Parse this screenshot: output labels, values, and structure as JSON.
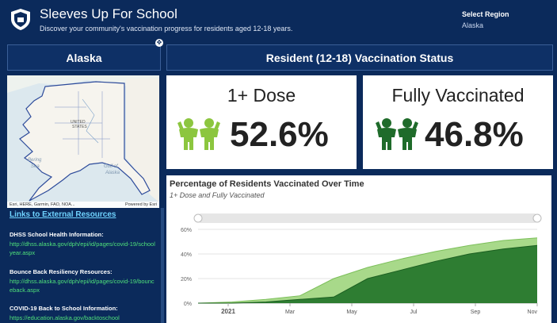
{
  "header": {
    "title": "Sleeves Up For School",
    "subtitle": "Discover your community's vaccination progress for residents aged 12-18 years.",
    "region_label": "Select Region",
    "region_value": "Alaska"
  },
  "left_panel": {
    "title": "Alaska",
    "map": {
      "labels": [
        "UNITED",
        "STATES",
        "Bering",
        "Sea",
        "Gulf of",
        "Alaska"
      ],
      "attribution": "Esri, HERE, Garmin, FAO, NOA...",
      "powered_by": "Powered by Esri"
    },
    "links": {
      "title": "Links to External Resources",
      "items": [
        {
          "heading": "DHSS School Health Information:",
          "url": "http://dhss.alaska.gov/dph/epi/id/pages/covid-19/schoolyear.aspx"
        },
        {
          "heading": "Bounce Back Resiliency Resources:",
          "url": "http://dhss.alaska.gov/dph/epi/id/pages/covid-19/bounceback.aspx"
        },
        {
          "heading": "COVID-19 Back to School Information:",
          "url": "https://education.alaska.gov/backtoschool"
        }
      ]
    }
  },
  "status": {
    "title": "Resident (12-18) Vaccination Status",
    "one_dose": {
      "label": "1+ Dose",
      "value": "52.6%",
      "color": "#8cc63f"
    },
    "fully": {
      "label": "Fully Vaccinated",
      "value": "46.8%",
      "color": "#1f6b2a"
    }
  },
  "chart_data": {
    "type": "area",
    "title": "Percentage of Residents Vaccinated Over Time",
    "subtitle": "1+ Dose and Fully Vaccinated",
    "yticks": [
      "0%",
      "20%",
      "40%",
      "60%"
    ],
    "ylim": [
      0,
      60
    ],
    "xticks": [
      "2021",
      "Mar",
      "May",
      "Jul",
      "Sep",
      "Nov"
    ],
    "x": [
      "Jan 1",
      "Feb 1",
      "Mar 1",
      "Apr 1",
      "May 12",
      "Jun 1",
      "Jul 1",
      "Aug 1",
      "Sep 1",
      "Oct 1",
      "Nov 1"
    ],
    "series": [
      {
        "values": [
          0,
          1,
          3,
          6,
          20,
          29,
          36,
          42,
          47,
          51,
          53
        ],
        "color": "#a8d98a"
      },
      {
        "values": [
          0,
          0,
          1,
          3,
          5,
          20,
          27,
          34,
          40,
          44,
          47
        ],
        "color": "#2e7d32"
      }
    ],
    "grid": true,
    "legend": "none"
  }
}
